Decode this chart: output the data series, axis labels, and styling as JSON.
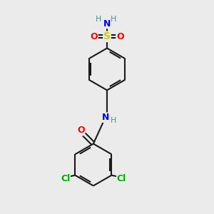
{
  "bg_color": "#ebebeb",
  "bond_color": "#1a1a1a",
  "atom_colors": {
    "N": "#0000ee",
    "O": "#ff0000",
    "S": "#cccc00",
    "Cl": "#00aa00",
    "H": "#4a9090",
    "C": "#1a1a1a"
  },
  "figsize": [
    3.0,
    3.0
  ],
  "dpi": 100
}
